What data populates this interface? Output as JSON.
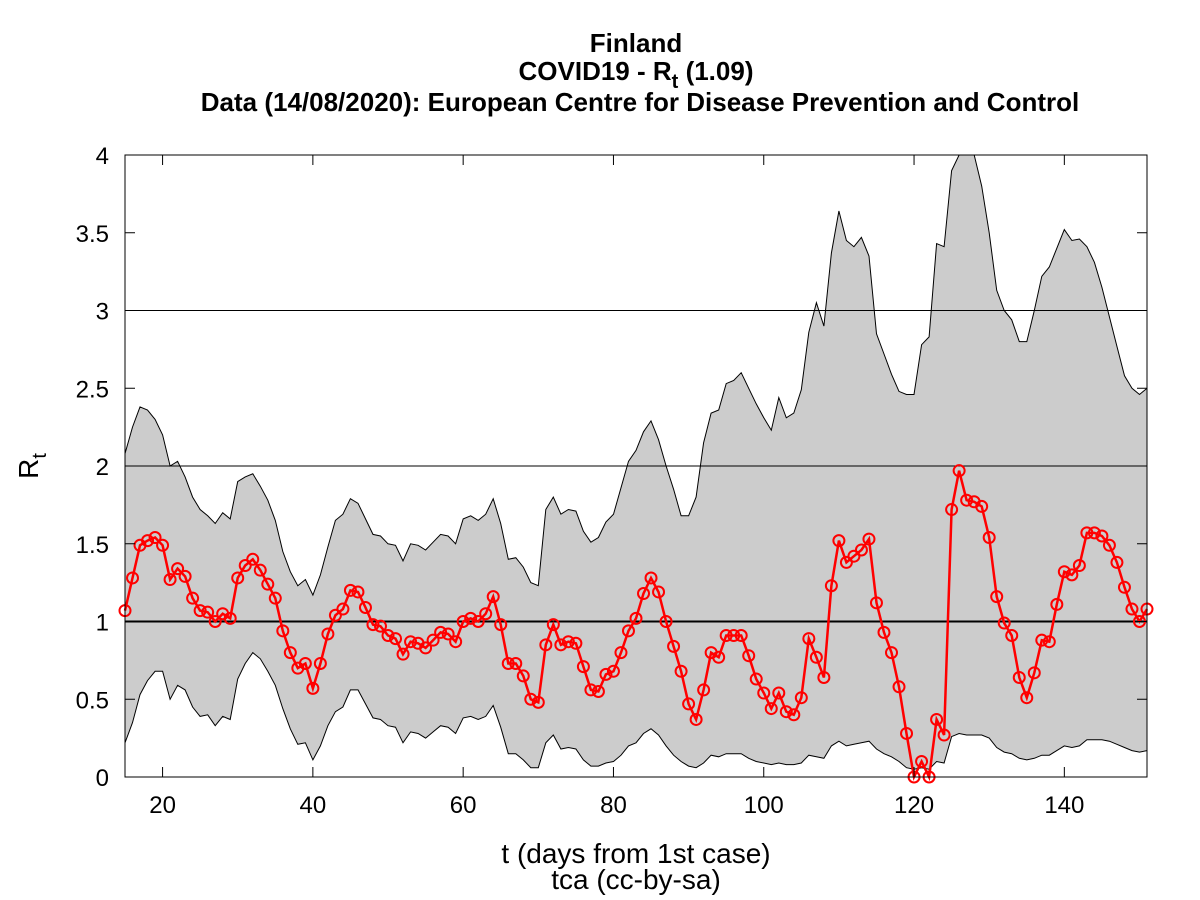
{
  "chart_data": {
    "type": "line",
    "title_country": "Finland",
    "title_main": "COVID19 - R",
    "title_main_sub": "t",
    "title_main_value": "(1.09)",
    "title_source": "Data (14/08/2020): European Centre for Disease Prevention and Control",
    "xlabel": "t (days from 1st case)",
    "credit": "tca (cc-by-sa)",
    "ylabel": "R",
    "ylabel_sub": "t",
    "xlim": [
      15,
      151
    ],
    "ylim": [
      0,
      4
    ],
    "xticks": [
      20,
      40,
      60,
      80,
      100,
      120,
      140
    ],
    "xtick_labels": [
      "20",
      "40",
      "60",
      "80",
      "100",
      "120",
      "140"
    ],
    "yticks": [
      0,
      0.5,
      1,
      1.5,
      2,
      2.5,
      3,
      3.5,
      4
    ],
    "ytick_labels": [
      "0",
      "0.5",
      "1",
      "1.5",
      "2",
      "2.5",
      "3",
      "3.5",
      "4"
    ],
    "hlines": [
      1,
      2,
      3
    ],
    "grid": false,
    "legend": "none",
    "colors": {
      "line": "#ff0000",
      "band": "#cccccc",
      "band_edge": "#000000",
      "axes": "#000000"
    },
    "series": [
      {
        "x": [
          15,
          16,
          17,
          18,
          19,
          20,
          21,
          22,
          23,
          24,
          25,
          26,
          27,
          28,
          29,
          30,
          31,
          32,
          33,
          34,
          35,
          36,
          37,
          38,
          39,
          40,
          41,
          42,
          43,
          44,
          45,
          46,
          47,
          48,
          49,
          50,
          51,
          52,
          53,
          54,
          55,
          56,
          57,
          58,
          59,
          60,
          61,
          62,
          63,
          64,
          65,
          66,
          67,
          68,
          69,
          70,
          71,
          72,
          73,
          74,
          75,
          76,
          77,
          78,
          79,
          80,
          81,
          82,
          83,
          84,
          85,
          86,
          87,
          88,
          89,
          90,
          91,
          92,
          93,
          94,
          95,
          96,
          97,
          98,
          99,
          100,
          101,
          102,
          103,
          104,
          105,
          106,
          107,
          108,
          109,
          110,
          111,
          112,
          113,
          114,
          115,
          116,
          117,
          118,
          119,
          120,
          121,
          122,
          123,
          124,
          125,
          126,
          127,
          128,
          129,
          130,
          131,
          132,
          133,
          134,
          135,
          136,
          137,
          138,
          139,
          140,
          141,
          142,
          143,
          144,
          145,
          146,
          147,
          148,
          149,
          150,
          151
        ],
        "values": [
          1.07,
          1.28,
          1.49,
          1.52,
          1.54,
          1.49,
          1.27,
          1.34,
          1.29,
          1.15,
          1.07,
          1.06,
          1.0,
          1.05,
          1.02,
          1.28,
          1.36,
          1.4,
          1.33,
          1.24,
          1.15,
          0.94,
          0.8,
          0.7,
          0.73,
          0.57,
          0.73,
          0.92,
          1.04,
          1.08,
          1.2,
          1.19,
          1.09,
          0.98,
          0.97,
          0.91,
          0.89,
          0.79,
          0.87,
          0.86,
          0.83,
          0.88,
          0.93,
          0.92,
          0.87,
          1.0,
          1.02,
          1.0,
          1.05,
          1.16,
          0.98,
          0.73,
          0.73,
          0.65,
          0.5,
          0.48,
          0.85,
          0.98,
          0.85,
          0.87,
          0.86,
          0.71,
          0.56,
          0.55,
          0.66,
          0.68,
          0.8,
          0.94,
          1.02,
          1.18,
          1.28,
          1.19,
          1.0,
          0.84,
          0.68,
          0.47,
          0.37,
          0.56,
          0.8,
          0.77,
          0.91,
          0.91,
          0.91,
          0.78,
          0.63,
          0.54,
          0.44,
          0.54,
          0.42,
          0.4,
          0.51,
          0.89,
          0.77,
          0.64,
          1.23,
          1.52,
          1.38,
          1.42,
          1.46,
          1.53,
          1.12,
          0.93,
          0.8,
          0.58,
          0.28,
          0.0,
          0.1,
          0.0,
          0.37,
          0.27,
          1.72,
          1.97,
          1.78,
          1.77,
          1.74,
          1.54,
          1.16,
          0.99,
          0.91,
          0.64,
          0.51,
          0.67,
          0.88,
          0.87,
          1.11,
          1.32,
          1.3,
          1.36,
          1.57,
          1.57,
          1.55,
          1.49,
          1.38,
          1.22,
          1.08,
          1.0,
          1.08
        ],
        "upper": [
          2.08,
          2.25,
          2.38,
          2.36,
          2.3,
          2.2,
          2.0,
          2.03,
          1.93,
          1.8,
          1.72,
          1.68,
          1.63,
          1.7,
          1.66,
          1.9,
          1.93,
          1.95,
          1.87,
          1.78,
          1.65,
          1.45,
          1.32,
          1.23,
          1.27,
          1.17,
          1.3,
          1.48,
          1.65,
          1.69,
          1.79,
          1.76,
          1.66,
          1.56,
          1.55,
          1.5,
          1.49,
          1.39,
          1.5,
          1.49,
          1.46,
          1.51,
          1.56,
          1.55,
          1.5,
          1.66,
          1.68,
          1.65,
          1.69,
          1.79,
          1.63,
          1.4,
          1.41,
          1.35,
          1.25,
          1.23,
          1.72,
          1.8,
          1.69,
          1.72,
          1.71,
          1.58,
          1.51,
          1.54,
          1.64,
          1.69,
          1.86,
          2.03,
          2.1,
          2.22,
          2.29,
          2.17,
          2.0,
          1.85,
          1.68,
          1.68,
          1.8,
          2.15,
          2.34,
          2.36,
          2.53,
          2.55,
          2.6,
          2.5,
          2.4,
          2.31,
          2.23,
          2.44,
          2.31,
          2.34,
          2.49,
          2.86,
          3.05,
          2.9,
          3.37,
          3.64,
          3.45,
          3.41,
          3.47,
          3.35,
          2.85,
          2.72,
          2.59,
          2.48,
          2.46,
          2.46,
          2.78,
          2.83,
          3.43,
          3.41,
          3.9,
          4.0,
          4.0,
          4.0,
          3.8,
          3.5,
          3.13,
          3.0,
          2.94,
          2.8,
          2.8,
          3.0,
          3.22,
          3.28,
          3.4,
          3.52,
          3.45,
          3.46,
          3.41,
          3.31,
          3.15,
          2.96,
          2.77,
          2.58,
          2.5,
          2.46,
          2.5
        ],
        "lower": [
          0.22,
          0.35,
          0.53,
          0.62,
          0.68,
          0.68,
          0.5,
          0.59,
          0.56,
          0.45,
          0.39,
          0.4,
          0.33,
          0.39,
          0.37,
          0.63,
          0.73,
          0.8,
          0.76,
          0.68,
          0.59,
          0.44,
          0.31,
          0.21,
          0.22,
          0.11,
          0.2,
          0.33,
          0.42,
          0.45,
          0.56,
          0.56,
          0.47,
          0.38,
          0.37,
          0.33,
          0.32,
          0.22,
          0.29,
          0.28,
          0.25,
          0.29,
          0.33,
          0.32,
          0.28,
          0.38,
          0.39,
          0.37,
          0.39,
          0.46,
          0.32,
          0.15,
          0.15,
          0.11,
          0.06,
          0.06,
          0.22,
          0.27,
          0.18,
          0.19,
          0.18,
          0.11,
          0.07,
          0.07,
          0.09,
          0.1,
          0.14,
          0.2,
          0.22,
          0.28,
          0.31,
          0.27,
          0.2,
          0.14,
          0.1,
          0.07,
          0.06,
          0.09,
          0.14,
          0.13,
          0.15,
          0.15,
          0.15,
          0.12,
          0.1,
          0.09,
          0.08,
          0.09,
          0.08,
          0.08,
          0.09,
          0.14,
          0.13,
          0.12,
          0.2,
          0.23,
          0.2,
          0.21,
          0.22,
          0.23,
          0.18,
          0.15,
          0.13,
          0.1,
          0.06,
          0.05,
          0.06,
          0.05,
          0.1,
          0.09,
          0.26,
          0.28,
          0.27,
          0.27,
          0.27,
          0.25,
          0.19,
          0.16,
          0.15,
          0.12,
          0.11,
          0.12,
          0.14,
          0.14,
          0.17,
          0.2,
          0.19,
          0.2,
          0.24,
          0.24,
          0.24,
          0.23,
          0.21,
          0.19,
          0.17,
          0.16,
          0.17
        ]
      }
    ]
  }
}
